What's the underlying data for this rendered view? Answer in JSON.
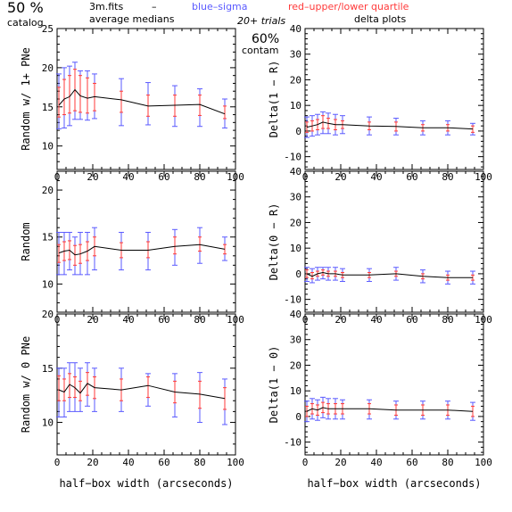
{
  "header": {
    "percent": "50 %",
    "catalog": "catalog",
    "file": "3m.fits",
    "dash": "–",
    "blue_label": "blue–sigma",
    "red_label": "red–upper/lower quartile",
    "avg_medians": "average medians",
    "trials": "20+ trials",
    "delta_plots": "delta plots",
    "contam_pct": "60%",
    "contam": "contam"
  },
  "colors": {
    "blue": "#5a5aff",
    "red": "#ff3a3a",
    "line": "#000000",
    "axis": "#000000"
  },
  "chart_data": [
    {
      "type": "line",
      "ylabel": "Random w/ 1+ PNe",
      "xlabel": "",
      "xlim": [
        0,
        100
      ],
      "ylim": [
        7,
        25
      ],
      "xticks": [
        0,
        20,
        40,
        60,
        80,
        100
      ],
      "yticks": [
        10,
        15,
        20,
        25
      ],
      "series": [
        {
          "x": [
            1,
            4,
            7,
            10,
            13,
            17,
            21,
            36,
            51,
            66,
            80,
            94
          ],
          "y": [
            15.2,
            16.0,
            16.3,
            17.2,
            16.4,
            16.1,
            16.3,
            15.9,
            15.1,
            15.2,
            15.3,
            14.1
          ],
          "sigma_lo": [
            12.2,
            12.3,
            12.6,
            13.4,
            13.4,
            13.3,
            13.5,
            12.6,
            12.7,
            12.5,
            12.5,
            12.3
          ],
          "sigma_hi": [
            19.2,
            20.0,
            20.2,
            20.7,
            19.6,
            19.6,
            19.2,
            18.6,
            18.1,
            17.7,
            17.3,
            16.0
          ],
          "q_lo": [
            13.7,
            14.0,
            14.2,
            14.5,
            14.3,
            14.2,
            14.5,
            14.3,
            13.8,
            13.8,
            13.9,
            13.5
          ],
          "q_hi": [
            17.5,
            18.5,
            19.0,
            19.8,
            19.0,
            18.7,
            18.0,
            17.0,
            16.5,
            16.5,
            16.5,
            15.1
          ]
        }
      ]
    },
    {
      "type": "line",
      "ylabel": "Delta(1 − R)",
      "xlabel": "",
      "xlim": [
        0,
        100
      ],
      "ylim": [
        -15,
        40
      ],
      "xticks": [
        0,
        20,
        40,
        60,
        80,
        100
      ],
      "yticks": [
        -10,
        0,
        10,
        20,
        30,
        40
      ],
      "series": [
        {
          "x": [
            1,
            4,
            7,
            10,
            13,
            17,
            21,
            36,
            51,
            66,
            80,
            94
          ],
          "y": [
            1.5,
            2.0,
            2.5,
            3.5,
            3.0,
            2.5,
            2.5,
            2.0,
            1.8,
            1.3,
            1.3,
            0.8
          ],
          "sigma_lo": [
            -2.5,
            -2.0,
            -1.5,
            -1.0,
            -1.0,
            -1.5,
            -1.0,
            -1.5,
            -1.5,
            -1.5,
            -1.5,
            -1.5
          ],
          "sigma_hi": [
            5.5,
            6.0,
            6.5,
            7.5,
            7.0,
            6.5,
            6.0,
            5.5,
            5.0,
            4.0,
            4.0,
            3.0
          ],
          "q_lo": [
            -0.5,
            0.0,
            0.5,
            1.0,
            1.0,
            0.5,
            1.0,
            0.5,
            0.0,
            0.0,
            0.0,
            -0.5
          ],
          "q_hi": [
            3.5,
            4.0,
            4.5,
            6.0,
            5.0,
            4.5,
            4.0,
            3.5,
            3.5,
            2.5,
            2.5,
            2.0
          ]
        }
      ]
    },
    {
      "type": "line",
      "ylabel": "Random",
      "xlabel": "",
      "xlim": [
        0,
        100
      ],
      "ylim": [
        7,
        22
      ],
      "xticks": [
        0,
        20,
        40,
        60,
        80,
        100
      ],
      "yticks": [
        10,
        15,
        20
      ],
      "series": [
        {
          "x": [
            1,
            4,
            7,
            10,
            13,
            17,
            21,
            36,
            51,
            66,
            80,
            94
          ],
          "y": [
            13.3,
            13.5,
            13.6,
            13.1,
            13.2,
            13.5,
            14.0,
            13.6,
            13.6,
            14.0,
            14.2,
            13.7
          ],
          "sigma_lo": [
            11.0,
            11.0,
            11.5,
            11.0,
            11.0,
            11.0,
            11.5,
            11.5,
            11.5,
            12.0,
            12.2,
            12.5
          ],
          "sigma_hi": [
            15.5,
            15.5,
            15.5,
            15.0,
            15.5,
            15.5,
            16.0,
            15.5,
            15.5,
            15.8,
            16.0,
            15.0
          ],
          "q_lo": [
            12.3,
            12.5,
            12.6,
            12.0,
            12.2,
            12.5,
            13.0,
            12.8,
            12.8,
            13.2,
            13.5,
            13.2
          ],
          "q_hi": [
            14.2,
            14.5,
            14.6,
            14.1,
            14.2,
            14.5,
            15.0,
            14.4,
            14.5,
            15.0,
            15.0,
            14.2
          ]
        }
      ]
    },
    {
      "type": "line",
      "ylabel": "Delta(0 − R)",
      "xlabel": "",
      "xlim": [
        0,
        100
      ],
      "ylim": [
        -15,
        40
      ],
      "xticks": [
        0,
        20,
        40,
        60,
        80,
        100
      ],
      "yticks": [
        -10,
        0,
        10,
        20,
        30,
        40
      ],
      "series": [
        {
          "x": [
            1,
            4,
            7,
            10,
            13,
            17,
            21,
            36,
            51,
            66,
            80,
            94
          ],
          "y": [
            0.0,
            -1.0,
            0.0,
            0.5,
            0.0,
            0.0,
            -0.5,
            -0.5,
            0.0,
            -1.0,
            -1.5,
            -1.5
          ],
          "sigma_lo": [
            -3.0,
            -3.5,
            -2.5,
            -2.0,
            -2.5,
            -2.5,
            -3.0,
            -3.0,
            -2.5,
            -3.5,
            -4.0,
            -4.0
          ],
          "sigma_hi": [
            2.5,
            2.0,
            2.5,
            2.5,
            2.5,
            2.5,
            2.0,
            2.0,
            2.5,
            1.5,
            1.0,
            1.0
          ],
          "q_lo": [
            -1.5,
            -2.0,
            -1.0,
            -0.5,
            -1.0,
            -1.0,
            -1.5,
            -1.5,
            -1.0,
            -2.0,
            -2.5,
            -2.5
          ],
          "q_hi": [
            1.5,
            0.5,
            1.0,
            1.5,
            1.0,
            1.0,
            0.5,
            0.5,
            1.0,
            0.0,
            -0.5,
            -0.5
          ]
        }
      ]
    },
    {
      "type": "line",
      "ylabel": "Random w/ 0 PNe",
      "xlabel": "half−box width (arcseconds)",
      "xlim": [
        0,
        100
      ],
      "ylim": [
        7,
        20
      ],
      "xticks": [
        0,
        20,
        40,
        60,
        80,
        100
      ],
      "yticks": [
        10,
        15,
        20
      ],
      "series": [
        {
          "x": [
            1,
            4,
            7,
            10,
            13,
            17,
            21,
            36,
            51,
            66,
            80,
            94
          ],
          "y": [
            13.0,
            12.8,
            13.5,
            13.2,
            12.7,
            13.6,
            13.2,
            13.0,
            13.4,
            12.8,
            12.6,
            12.2
          ],
          "sigma_lo": [
            10.5,
            10.5,
            11.0,
            11.0,
            11.0,
            11.5,
            11.0,
            11.0,
            11.5,
            10.5,
            10.0,
            9.8
          ],
          "sigma_hi": [
            15.0,
            15.0,
            15.5,
            15.5,
            15.0,
            15.5,
            15.0,
            15.0,
            14.5,
            14.5,
            14.6,
            14.0
          ],
          "q_lo": [
            12.0,
            12.0,
            12.3,
            12.3,
            12.0,
            12.5,
            12.2,
            12.0,
            12.3,
            11.8,
            11.3,
            11.2
          ],
          "q_hi": [
            14.3,
            14.0,
            14.5,
            14.2,
            13.8,
            14.6,
            14.2,
            14.0,
            14.2,
            13.8,
            13.8,
            13.2
          ]
        }
      ]
    },
    {
      "type": "line",
      "ylabel": "Delta(1 − 0)",
      "xlabel": "half−box width (arcseconds)",
      "xlim": [
        0,
        100
      ],
      "ylim": [
        -15,
        40
      ],
      "xticks": [
        0,
        20,
        40,
        60,
        80,
        100
      ],
      "yticks": [
        -10,
        0,
        10,
        20,
        30,
        40
      ],
      "series": [
        {
          "x": [
            1,
            4,
            7,
            10,
            13,
            17,
            21,
            36,
            51,
            66,
            80,
            94
          ],
          "y": [
            2.0,
            3.0,
            2.5,
            3.5,
            3.0,
            3.0,
            3.0,
            3.0,
            2.5,
            2.5,
            2.5,
            2.0
          ],
          "sigma_lo": [
            -2.0,
            -1.0,
            -1.5,
            -0.5,
            -1.0,
            -1.0,
            -1.0,
            -1.0,
            -1.0,
            -1.0,
            -1.0,
            -1.5
          ],
          "sigma_hi": [
            6.0,
            7.0,
            6.5,
            7.5,
            7.0,
            7.0,
            6.5,
            6.5,
            6.0,
            6.0,
            6.0,
            5.5
          ],
          "q_lo": [
            0.0,
            1.0,
            0.5,
            1.5,
            1.0,
            1.0,
            1.0,
            1.0,
            0.5,
            0.5,
            0.5,
            0.0
          ],
          "q_hi": [
            4.0,
            5.0,
            4.5,
            5.5,
            5.0,
            5.0,
            5.0,
            5.0,
            4.5,
            4.5,
            4.5,
            4.0
          ]
        }
      ]
    }
  ]
}
